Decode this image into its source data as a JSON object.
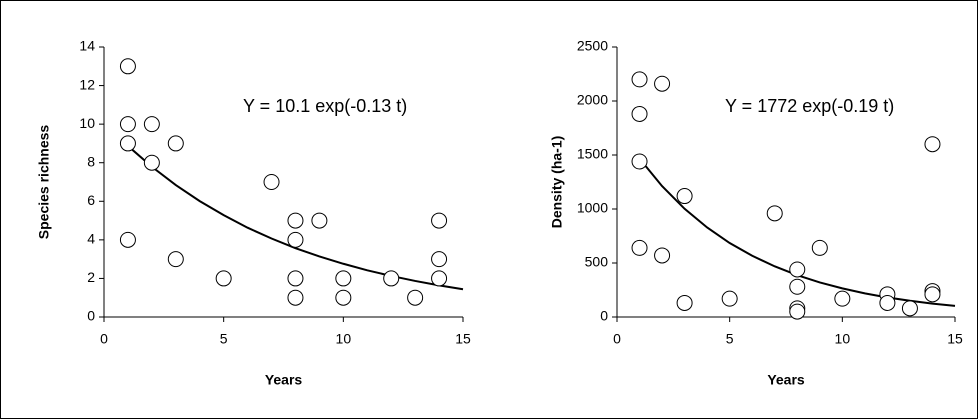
{
  "chart_data": [
    {
      "type": "scatter",
      "annotation": "Y = 10.1 exp(-0.13 t)",
      "xlabel": "Years",
      "ylabel": "Species richness",
      "x": [
        1,
        1,
        1,
        1,
        2,
        2,
        3,
        3,
        5,
        7,
        8,
        8,
        8,
        8,
        9,
        10,
        10,
        12,
        13,
        14,
        14,
        14
      ],
      "values": [
        13,
        10,
        9,
        4,
        10,
        8,
        9,
        3,
        2,
        7,
        5,
        4,
        2,
        1,
        5,
        2,
        1,
        2,
        1,
        5,
        3,
        2
      ],
      "fit": {
        "x": [
          1,
          2,
          3,
          4,
          5,
          6,
          7,
          8,
          9,
          10,
          11,
          12,
          13,
          14,
          15
        ],
        "values": [
          8.87,
          7.79,
          6.84,
          6.01,
          5.28,
          4.63,
          4.07,
          3.57,
          3.14,
          2.76,
          2.42,
          2.13,
          1.87,
          1.64,
          1.44
        ]
      },
      "xlim": [
        0,
        15
      ],
      "xticks": [
        0,
        5,
        10,
        15
      ],
      "ylim": [
        0,
        14
      ],
      "yticks": [
        0,
        2,
        4,
        6,
        8,
        10,
        12,
        14
      ]
    },
    {
      "type": "scatter",
      "annotation": "Y = 1772 exp(-0.19 t)",
      "xlabel": "Years",
      "ylabel": "Density (ha-1)",
      "x": [
        1,
        1,
        1,
        1,
        2,
        2,
        3,
        3,
        5,
        7,
        8,
        8,
        8,
        8,
        9,
        10,
        12,
        12,
        13,
        14,
        14,
        14
      ],
      "values": [
        2200,
        1880,
        1440,
        640,
        2160,
        570,
        1120,
        130,
        170,
        960,
        440,
        280,
        80,
        50,
        640,
        170,
        210,
        130,
        80,
        1600,
        240,
        210
      ],
      "fit": {
        "x": [
          1,
          2,
          3,
          4,
          5,
          6,
          7,
          8,
          9,
          10,
          11,
          12,
          13,
          14,
          15
        ],
        "values": [
          1466,
          1212,
          1002,
          829,
          685,
          567,
          469,
          387,
          320,
          265,
          219,
          181,
          150,
          124,
          103
        ]
      },
      "xlim": [
        0,
        15
      ],
      "xticks": [
        0,
        5,
        10,
        15
      ],
      "ylim": [
        0,
        2500
      ],
      "yticks": [
        0,
        500,
        1000,
        1500,
        2000,
        2500
      ]
    }
  ]
}
